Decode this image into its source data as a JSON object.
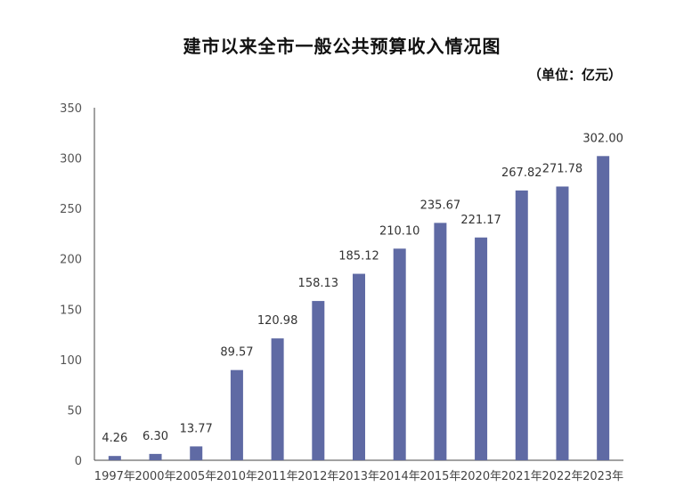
{
  "chart_data": {
    "type": "bar",
    "title": "建市以来全市一般公共预算收入情况图",
    "unit": "（单位：亿元）",
    "categories": [
      "1997年",
      "2000年",
      "2005年",
      "2010年",
      "2011年",
      "2012年",
      "2013年",
      "2014年",
      "2015年",
      "2020年",
      "2021年",
      "2022年",
      "2023年"
    ],
    "values": [
      4.26,
      6.3,
      13.77,
      89.57,
      120.98,
      158.13,
      185.12,
      210.1,
      235.67,
      221.17,
      267.82,
      271.78,
      302.0
    ],
    "value_labels": [
      "4.26",
      "6.30",
      "13.77",
      "89.57",
      "120.98",
      "158.13",
      "185.12",
      "210.10",
      "235.67",
      "221.17",
      "267.82",
      "271.78",
      "302.00"
    ],
    "y_ticks": [
      "0",
      "50",
      "100",
      "150",
      "200",
      "250",
      "300",
      "350"
    ],
    "ylim": [
      0,
      350
    ],
    "xlabel": "",
    "ylabel": "",
    "grid": false,
    "bar_color": "#5f6aa4"
  }
}
